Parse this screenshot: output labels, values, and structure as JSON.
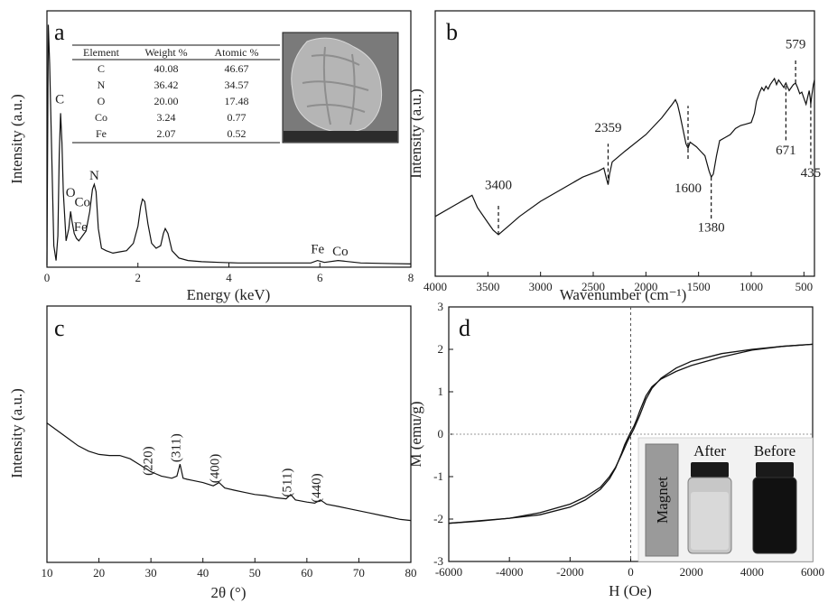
{
  "colors": {
    "line": "#111111",
    "ref_line": "#888888",
    "sem_bg": "#6f6f6f",
    "magnet": "#9a9a9a"
  },
  "chart_data": [
    {
      "panel": "a",
      "type": "line",
      "xlabel": "Energy (keV)",
      "ylabel": "Intensity (a.u.)",
      "xlim": [
        0,
        8
      ],
      "x_ticks": [
        "0",
        "2",
        "4",
        "6",
        "8"
      ],
      "series": [
        {
          "x": [
            0,
            0.03,
            0.06,
            0.1,
            0.15,
            0.2,
            0.24,
            0.27,
            0.3,
            0.33,
            0.36,
            0.42,
            0.48,
            0.52,
            0.55,
            0.6,
            0.65,
            0.7,
            0.78,
            0.86,
            0.94,
            1.0,
            1.04,
            1.08,
            1.13,
            1.2,
            1.3,
            1.45,
            1.6,
            1.75,
            1.9,
            2.0,
            2.06,
            2.1,
            2.15,
            2.22,
            2.3,
            2.4,
            2.5,
            2.56,
            2.6,
            2.66,
            2.75,
            2.9,
            3.1,
            3.4,
            3.8,
            4.2,
            4.6,
            5.0,
            5.4,
            5.8,
            5.95,
            6.1,
            6.4,
            6.9,
            7.4,
            8.0
          ],
          "y": [
            0.0,
            0.98,
            0.82,
            0.5,
            0.08,
            0.02,
            0.12,
            0.45,
            0.62,
            0.5,
            0.3,
            0.1,
            0.15,
            0.22,
            0.18,
            0.13,
            0.11,
            0.1,
            0.12,
            0.14,
            0.22,
            0.31,
            0.33,
            0.3,
            0.15,
            0.07,
            0.06,
            0.05,
            0.055,
            0.06,
            0.09,
            0.16,
            0.24,
            0.27,
            0.26,
            0.17,
            0.09,
            0.07,
            0.08,
            0.13,
            0.15,
            0.13,
            0.06,
            0.03,
            0.02,
            0.015,
            0.012,
            0.01,
            0.01,
            0.01,
            0.01,
            0.01,
            0.02,
            0.012,
            0.02,
            0.01,
            0.008,
            0.006
          ]
        }
      ],
      "annotations": [
        {
          "text": "C",
          "x": 0.28,
          "y": 0.66
        },
        {
          "text": "O",
          "x": 0.52,
          "y": 0.28
        },
        {
          "text": "Co",
          "x": 0.78,
          "y": 0.24
        },
        {
          "text": "Fe",
          "x": 0.74,
          "y": 0.14
        },
        {
          "text": "N",
          "x": 1.04,
          "y": 0.35
        },
        {
          "text": "Fe",
          "x": 5.95,
          "y": 0.05
        },
        {
          "text": "Co",
          "x": 6.45,
          "y": 0.04
        }
      ],
      "table": {
        "headers": [
          "Element",
          "Weight %",
          "Atomic %"
        ],
        "rows": [
          [
            "C",
            "40.08",
            "46.67"
          ],
          [
            "N",
            "36.42",
            "34.57"
          ],
          [
            "O",
            "20.00",
            "17.48"
          ],
          [
            "Co",
            "3.24",
            "0.77"
          ],
          [
            "Fe",
            "2.07",
            "0.52"
          ]
        ]
      }
    },
    {
      "panel": "b",
      "type": "line",
      "xlabel": "Wavenumber (cm⁻¹)",
      "ylabel": "Intensity (a.u.)",
      "xlim": [
        4000,
        400
      ],
      "x_ticks": [
        "4000",
        "3500",
        "3000",
        "2500",
        "2000",
        "1500",
        "1000",
        "500"
      ],
      "series": [
        {
          "x": [
            4000,
            3800,
            3700,
            3650,
            3600,
            3500,
            3450,
            3400,
            3300,
            3200,
            3000,
            2800,
            2600,
            2450,
            2400,
            2375,
            2359,
            2345,
            2320,
            2200,
            2000,
            1850,
            1750,
            1720,
            1700,
            1680,
            1650,
            1620,
            1600,
            1580,
            1560,
            1520,
            1480,
            1440,
            1400,
            1380,
            1360,
            1330,
            1300,
            1250,
            1200,
            1150,
            1100,
            1050,
            1000,
            970,
            950,
            920,
            900,
            880,
            860,
            840,
            820,
            800,
            780,
            760,
            740,
            720,
            700,
            690,
            680,
            671,
            660,
            640,
            620,
            600,
            579,
            560,
            540,
            520,
            500,
            480,
            460,
            450,
            440,
            435,
            425,
            410,
            400
          ],
          "y": [
            0.12,
            0.2,
            0.24,
            0.26,
            0.18,
            0.08,
            0.03,
            0.0,
            0.06,
            0.12,
            0.22,
            0.3,
            0.38,
            0.42,
            0.44,
            0.37,
            0.33,
            0.4,
            0.48,
            0.55,
            0.66,
            0.77,
            0.86,
            0.89,
            0.86,
            0.8,
            0.7,
            0.6,
            0.57,
            0.61,
            0.6,
            0.58,
            0.55,
            0.52,
            0.42,
            0.38,
            0.4,
            0.52,
            0.62,
            0.64,
            0.66,
            0.7,
            0.72,
            0.73,
            0.74,
            0.8,
            0.88,
            0.94,
            0.97,
            0.95,
            0.98,
            0.96,
            0.99,
            1.01,
            1.03,
            0.99,
            1.02,
            1.0,
            0.98,
            0.97,
            0.99,
            1.0,
            0.98,
            0.95,
            0.97,
            0.99,
            1.0,
            0.97,
            0.93,
            0.94,
            0.9,
            0.86,
            0.92,
            0.95,
            0.9,
            0.86,
            0.92,
            0.99,
            1.02
          ]
        }
      ],
      "markers": [
        {
          "label": "3400",
          "x": 3400,
          "y_from": 0.0,
          "y_to": 0.2,
          "label_y": 0.3
        },
        {
          "label": "2359",
          "x": 2359,
          "y_from": 0.33,
          "y_to": 0.6,
          "label_y": 0.68
        },
        {
          "label": "1600",
          "x": 1600,
          "y_from": 0.5,
          "y_to": 0.85,
          "label_y": 0.28
        },
        {
          "label": "1380",
          "x": 1380,
          "y_from": 0.38,
          "y_to": 0.1,
          "label_y": 0.02
        },
        {
          "label": "671",
          "x": 671,
          "y_from": 0.98,
          "y_to": 0.62,
          "label_y": 0.53
        },
        {
          "label": "579",
          "x": 579,
          "y_from": 1.0,
          "y_to": 1.16,
          "label_y": 1.23
        },
        {
          "label": "435",
          "x": 435,
          "y_from": 0.86,
          "y_to": 0.45,
          "label_y": 0.38
        }
      ]
    },
    {
      "panel": "c",
      "type": "line",
      "xlabel": "2θ (°)",
      "ylabel": "Intensity (a.u.)",
      "xlim": [
        10,
        80
      ],
      "x_ticks": [
        "10",
        "20",
        "30",
        "40",
        "50",
        "60",
        "70",
        "80"
      ],
      "series": [
        {
          "x": [
            10,
            12,
            14,
            16,
            18,
            20,
            22,
            24,
            26,
            28,
            30,
            31,
            32,
            33,
            34,
            35,
            35.6,
            36.2,
            37,
            38,
            40,
            42,
            43.1,
            44.2,
            46,
            48,
            50,
            52,
            54,
            56,
            56.9,
            57.8,
            60,
            61.5,
            62.6,
            63.8,
            66,
            68,
            70,
            72,
            74,
            76,
            78,
            80
          ],
          "y": [
            0.97,
            0.9,
            0.83,
            0.76,
            0.71,
            0.68,
            0.67,
            0.67,
            0.64,
            0.58,
            0.52,
            0.5,
            0.48,
            0.47,
            0.46,
            0.48,
            0.59,
            0.46,
            0.45,
            0.44,
            0.42,
            0.39,
            0.42,
            0.37,
            0.35,
            0.33,
            0.31,
            0.3,
            0.28,
            0.27,
            0.31,
            0.26,
            0.24,
            0.23,
            0.26,
            0.22,
            0.2,
            0.18,
            0.16,
            0.14,
            0.12,
            0.1,
            0.08,
            0.07
          ]
        }
      ],
      "annotations": [
        {
          "text": "(220)",
          "x": 30.2,
          "y": 0.62
        },
        {
          "text": "(311)",
          "x": 35.6,
          "y": 0.74
        },
        {
          "text": "(400)",
          "x": 43.1,
          "y": 0.55
        },
        {
          "text": "(511)",
          "x": 57.0,
          "y": 0.42
        },
        {
          "text": "(440)",
          "x": 62.6,
          "y": 0.37
        }
      ]
    },
    {
      "panel": "d",
      "type": "line",
      "xlabel": "H (Oe)",
      "ylabel": "M (emu/g)",
      "xlim": [
        -6000,
        6000
      ],
      "ylim": [
        -3,
        3
      ],
      "x_ticks": [
        "-6000",
        "-4000",
        "-2000",
        "0",
        "2000",
        "4000",
        "6000"
      ],
      "y_ticks": [
        "-3",
        "-2",
        "-1",
        "0",
        "1",
        "2",
        "3"
      ],
      "series": [
        {
          "x": [
            6000,
            5000,
            4000,
            3000,
            2000,
            1500,
            1000,
            700,
            500,
            300,
            200,
            100,
            0,
            -100,
            -200,
            -300,
            -500,
            -700,
            -1000,
            -1500,
            -2000,
            -3000,
            -4000,
            -5000,
            -6000
          ],
          "y": [
            2.12,
            2.07,
            1.98,
            1.82,
            1.62,
            1.48,
            1.3,
            1.12,
            0.9,
            0.55,
            0.35,
            0.18,
            0.05,
            -0.1,
            -0.25,
            -0.45,
            -0.8,
            -1.05,
            -1.3,
            -1.55,
            -1.72,
            -1.9,
            -1.98,
            -2.04,
            -2.1
          ]
        },
        {
          "x": [
            -6000,
            -5000,
            -4000,
            -3000,
            -2000,
            -1500,
            -1000,
            -700,
            -500,
            -300,
            -200,
            -100,
            0,
            100,
            200,
            300,
            500,
            700,
            1000,
            1500,
            2000,
            3000,
            4000,
            5000,
            6000
          ],
          "y": [
            -2.1,
            -2.05,
            -1.98,
            -1.85,
            -1.65,
            -1.48,
            -1.25,
            -1.0,
            -0.78,
            -0.48,
            -0.32,
            -0.16,
            -0.02,
            0.12,
            0.28,
            0.45,
            0.82,
            1.08,
            1.32,
            1.56,
            1.72,
            1.9,
            2.0,
            2.07,
            2.12
          ]
        }
      ],
      "inset": {
        "magnet_label": "Magnet",
        "after_label": "After",
        "before_label": "Before"
      }
    }
  ]
}
